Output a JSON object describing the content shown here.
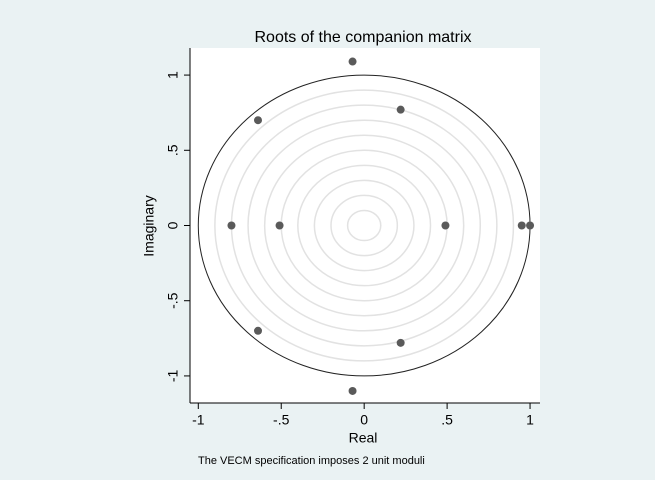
{
  "chart_data": {
    "type": "scatter",
    "title": "Roots of the companion matrix",
    "xlabel": "Real",
    "ylabel": "Imaginary",
    "note": "The VECM specification imposes 2 unit moduli",
    "x": [
      -0.07,
      0.22,
      -0.64,
      -0.8,
      -0.51,
      0.49,
      0.95,
      1.0,
      -0.64,
      0.22,
      -0.07
    ],
    "values": [
      1.09,
      0.77,
      0.7,
      0,
      0,
      0,
      0,
      0,
      -0.7,
      -0.78,
      -1.1
    ],
    "color": "#5a5a5a",
    "xlim": [
      -1.05,
      1.06
    ],
    "ylim": [
      -1.18,
      1.18
    ],
    "xticks": [
      -1,
      {
        "value": -0.5,
        "label": "-.5"
      },
      0,
      {
        "value": 0.5,
        "label": ".5"
      },
      1
    ],
    "yticks": [
      -1,
      {
        "value": -0.5,
        "label": "-.5"
      },
      0,
      {
        "value": 0.5,
        "label": ".5"
      },
      1
    ],
    "unit_circle": true
  }
}
